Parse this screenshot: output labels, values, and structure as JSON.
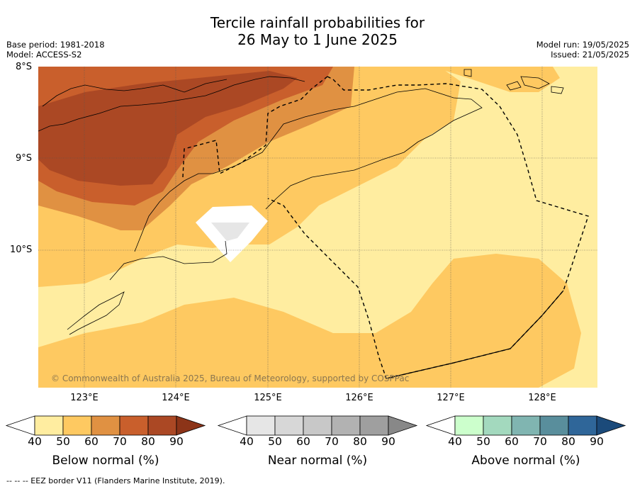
{
  "title_line1": "Tercile rainfall probabilities for",
  "title_line2": "26 May to 1 June 2025",
  "meta_left": [
    "Base period: 1981-2018",
    "Model: ACCESS-S2"
  ],
  "meta_right": [
    "Model run: 19/05/2025",
    "Issued: 21/05/2025"
  ],
  "lat_labels": [
    "8°S",
    "9°S",
    "10°S"
  ],
  "lon_labels": [
    "123°E",
    "124°E",
    "125°E",
    "126°E",
    "127°E",
    "128°E"
  ],
  "copyright": "© Commonwealth of Australia 2025, Bureau of Meteorology, supported by COSPPac",
  "colorbars": [
    {
      "label": "Below normal (%)",
      "ticks": [
        "40",
        "50",
        "60",
        "70",
        "80",
        "90"
      ],
      "colors": [
        "#ffffff",
        "#ffeda0",
        "#fec961",
        "#e09142",
        "#c95f2c",
        "#ab4824",
        "#8c3418"
      ]
    },
    {
      "label": "Near normal (%)",
      "ticks": [
        "40",
        "50",
        "60",
        "70",
        "80",
        "90"
      ],
      "colors": [
        "#ffffff",
        "#e6e6e6",
        "#d7d7d7",
        "#c8c8c8",
        "#b2b2b2",
        "#9f9f9f",
        "#888888"
      ]
    },
    {
      "label": "Above normal (%)",
      "ticks": [
        "40",
        "50",
        "60",
        "70",
        "80",
        "90"
      ],
      "colors": [
        "#ffffff",
        "#ccffcc",
        "#a3d9be",
        "#80b5b1",
        "#598e9c",
        "#2f6699",
        "#1b4a7a"
      ]
    }
  ],
  "footer": "--  --  -- EEZ border V11 (Flanders Marine Institute, 2019)."
}
